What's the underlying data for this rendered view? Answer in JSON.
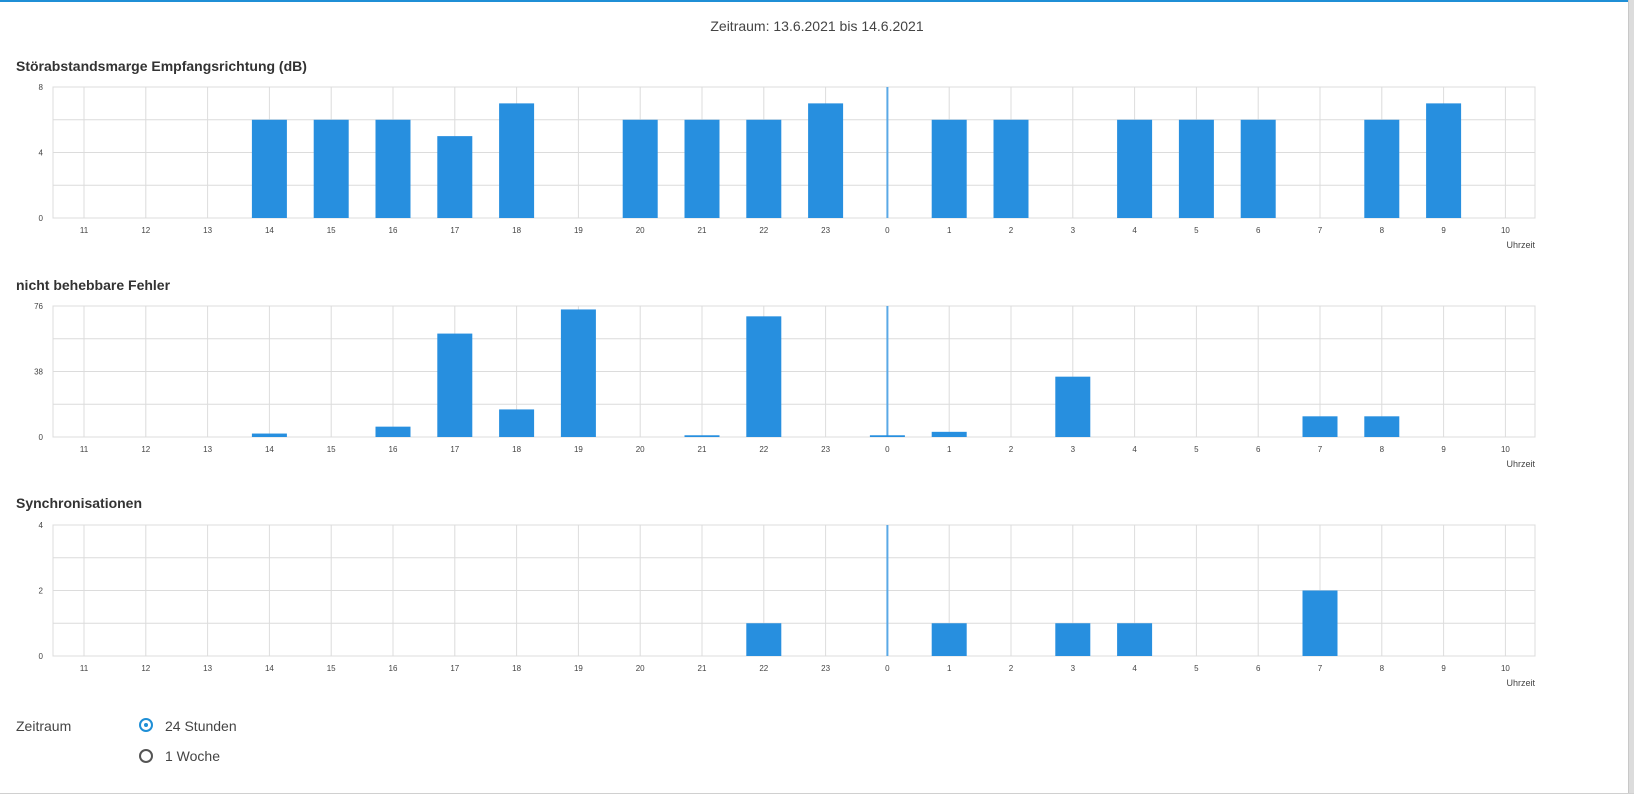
{
  "header": {
    "period_text": "Zeitraum: 13.6.2021 bis 14.6.2021"
  },
  "colors": {
    "bar": "#278fdf",
    "grid": "#dcdcdc",
    "divider": "#5aa9e6"
  },
  "chart_data": [
    {
      "type": "bar",
      "title": "Störabstandsmarge Empfangsrichtung (dB)",
      "xlabel": "Uhrzeit",
      "categories": [
        "11",
        "12",
        "13",
        "14",
        "15",
        "16",
        "17",
        "18",
        "19",
        "20",
        "21",
        "22",
        "23",
        "0",
        "1",
        "2",
        "3",
        "4",
        "5",
        "6",
        "7",
        "8",
        "9",
        "10"
      ],
      "values": [
        0,
        0,
        0,
        6,
        6,
        6,
        5,
        7,
        0,
        6,
        6,
        6,
        7,
        0,
        6,
        6,
        0,
        6,
        6,
        6,
        0,
        6,
        7,
        0
      ],
      "ylim": [
        0,
        8
      ],
      "yticks": [
        0,
        4,
        8
      ],
      "grid": true
    },
    {
      "type": "bar",
      "title": "nicht behebbare Fehler",
      "xlabel": "Uhrzeit",
      "categories": [
        "11",
        "12",
        "13",
        "14",
        "15",
        "16",
        "17",
        "18",
        "19",
        "20",
        "21",
        "22",
        "23",
        "0",
        "1",
        "2",
        "3",
        "4",
        "5",
        "6",
        "7",
        "8",
        "9",
        "10"
      ],
      "values": [
        0,
        0,
        0,
        2,
        0,
        6,
        60,
        16,
        74,
        0,
        1,
        70,
        0,
        1,
        3,
        0,
        35,
        0,
        0,
        0,
        12,
        12,
        0,
        0
      ],
      "ylim": [
        0,
        76
      ],
      "yticks": [
        0,
        38,
        76
      ],
      "grid": true
    },
    {
      "type": "bar",
      "title": "Synchronisationen",
      "xlabel": "Uhrzeit",
      "categories": [
        "11",
        "12",
        "13",
        "14",
        "15",
        "16",
        "17",
        "18",
        "19",
        "20",
        "21",
        "22",
        "23",
        "0",
        "1",
        "2",
        "3",
        "4",
        "5",
        "6",
        "7",
        "8",
        "9",
        "10"
      ],
      "values": [
        0,
        0,
        0,
        0,
        0,
        0,
        0,
        0,
        0,
        0,
        0,
        1,
        0,
        0,
        1,
        0,
        1,
        1,
        0,
        0,
        2,
        0,
        0,
        0
      ],
      "ylim": [
        0,
        4
      ],
      "yticks": [
        0,
        2,
        4
      ],
      "grid": true
    }
  ],
  "period_selector": {
    "label": "Zeitraum",
    "options": [
      {
        "label": "24 Stunden",
        "checked": true
      },
      {
        "label": "1 Woche",
        "checked": false
      }
    ]
  }
}
